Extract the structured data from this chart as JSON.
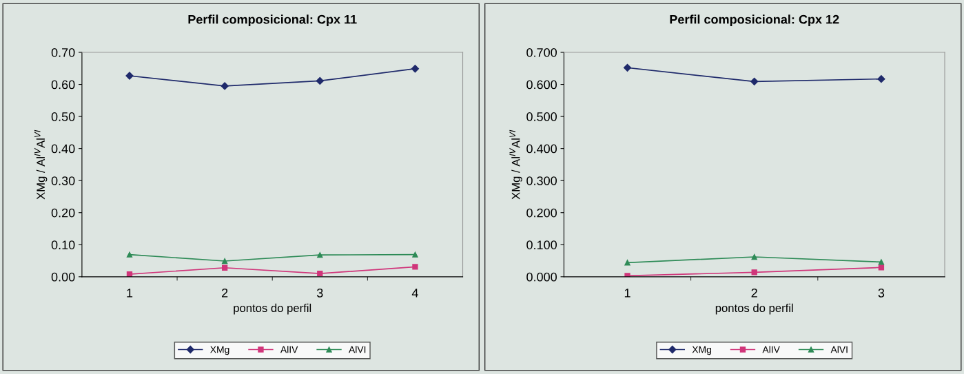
{
  "chart_data": [
    {
      "type": "line",
      "title": "Perfil composicional: Cpx 11",
      "xlabel": "pontos do perfil",
      "ylabel": "XMg / Al$^{IV}$Al$^{VI}$",
      "categories": [
        "1",
        "2",
        "3",
        "4"
      ],
      "ylim": [
        0,
        0.7
      ],
      "yticks": [
        {
          "value": 0,
          "label": "0.00"
        },
        {
          "value": 0.1,
          "label": "0.10"
        },
        {
          "value": 0.2,
          "label": "0.20"
        },
        {
          "value": 0.3,
          "label": "0.30"
        },
        {
          "value": 0.4,
          "label": "0.40"
        },
        {
          "value": 0.5,
          "label": "0.50"
        },
        {
          "value": 0.6,
          "label": "0.60"
        },
        {
          "value": 0.7,
          "label": "0.70"
        }
      ],
      "grid": false,
      "legend": "bottom",
      "series": [
        {
          "name": "XMg",
          "color": "#1f2a6b",
          "marker": "diamond",
          "values": [
            0.627,
            0.595,
            0.611,
            0.649
          ]
        },
        {
          "name": "AlIV",
          "color": "#d0357a",
          "marker": "square",
          "values": [
            0.008,
            0.028,
            0.01,
            0.031
          ]
        },
        {
          "name": "AlVI",
          "color": "#2e8b57",
          "marker": "triangle",
          "values": [
            0.069,
            0.049,
            0.068,
            0.069
          ]
        }
      ]
    },
    {
      "type": "line",
      "title": "Perfil composicional: Cpx 12",
      "xlabel": "pontos do perfil",
      "ylabel": "XMg / Al$^{IV}$Al$^{VI}$",
      "categories": [
        "1",
        "2",
        "3"
      ],
      "ylim": [
        0,
        0.7
      ],
      "yticks": [
        {
          "value": 0,
          "label": "0.000"
        },
        {
          "value": 0.1,
          "label": "0.100"
        },
        {
          "value": 0.2,
          "label": "0.200"
        },
        {
          "value": 0.3,
          "label": "0.300"
        },
        {
          "value": 0.4,
          "label": "0.400"
        },
        {
          "value": 0.5,
          "label": "0.500"
        },
        {
          "value": 0.6,
          "label": "0.600"
        },
        {
          "value": 0.7,
          "label": "0.700"
        }
      ],
      "grid": false,
      "legend": "bottom",
      "series": [
        {
          "name": "XMg",
          "color": "#1f2a6b",
          "marker": "diamond",
          "values": [
            0.652,
            0.609,
            0.617
          ]
        },
        {
          "name": "AlIV",
          "color": "#d0357a",
          "marker": "square",
          "values": [
            0.003,
            0.014,
            0.029
          ]
        },
        {
          "name": "AlVI",
          "color": "#2e8b57",
          "marker": "triangle",
          "values": [
            0.044,
            0.062,
            0.046
          ]
        }
      ]
    }
  ]
}
